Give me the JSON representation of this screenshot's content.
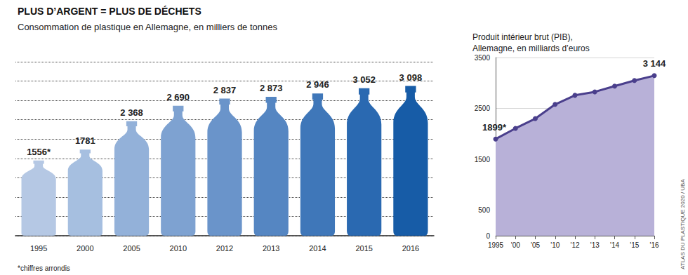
{
  "title": "PLUS D’ARGENT = PLUS DE DÉCHETS",
  "footnote": "*chiffres arrondis",
  "source": "ATLAS DU PLASTIQUE 2020 / UBA",
  "chart_data": [
    {
      "type": "bar",
      "title": "Consommation de plastique en Allemagne, en milliers de tonnes",
      "categories": [
        "1995",
        "2000",
        "2005",
        "2010",
        "2012",
        "2013",
        "2014",
        "2015",
        "2016"
      ],
      "values": [
        1556,
        1781,
        2368,
        2690,
        2837,
        2873,
        2946,
        3052,
        3098
      ],
      "value_labels": [
        "1556*",
        "1781",
        "2 368",
        "2 690",
        "2 837",
        "2 873",
        "2 946",
        "3 052",
        "3 098"
      ],
      "colors": [
        "#b5c8e4",
        "#a6bfe0",
        "#93b1d9",
        "#7ea2d1",
        "#6a94ca",
        "#5586c2",
        "#3f77b9",
        "#2a69b1",
        "#175ca7"
      ],
      "ylim": [
        0,
        3600
      ],
      "yticks": [
        0,
        400,
        800,
        1200,
        1600,
        2000,
        2400,
        2800,
        3200,
        3600
      ],
      "grid": true,
      "data_labels": true,
      "tick_labels": "x",
      "marker": "bottle"
    },
    {
      "type": "line",
      "title": "Produit intérieur brut (PIB),\nAllemagne, en milliards d’euros",
      "categories": [
        "1995",
        "'00",
        "'05",
        "'10",
        "'12",
        "'13",
        "'14",
        "'15",
        "'16"
      ],
      "values": [
        1899,
        2109,
        2300,
        2580,
        2758,
        2826,
        2938,
        3049,
        3144
      ],
      "value_labels": [
        "1899*",
        null,
        null,
        null,
        null,
        null,
        null,
        null,
        "3 144"
      ],
      "color": "#4a3f8c",
      "marker": "circle",
      "ylim": [
        0,
        3500
      ],
      "yticks": [
        0,
        500,
        1500,
        2500,
        3500
      ],
      "grid": true,
      "data_labels": true
    }
  ]
}
